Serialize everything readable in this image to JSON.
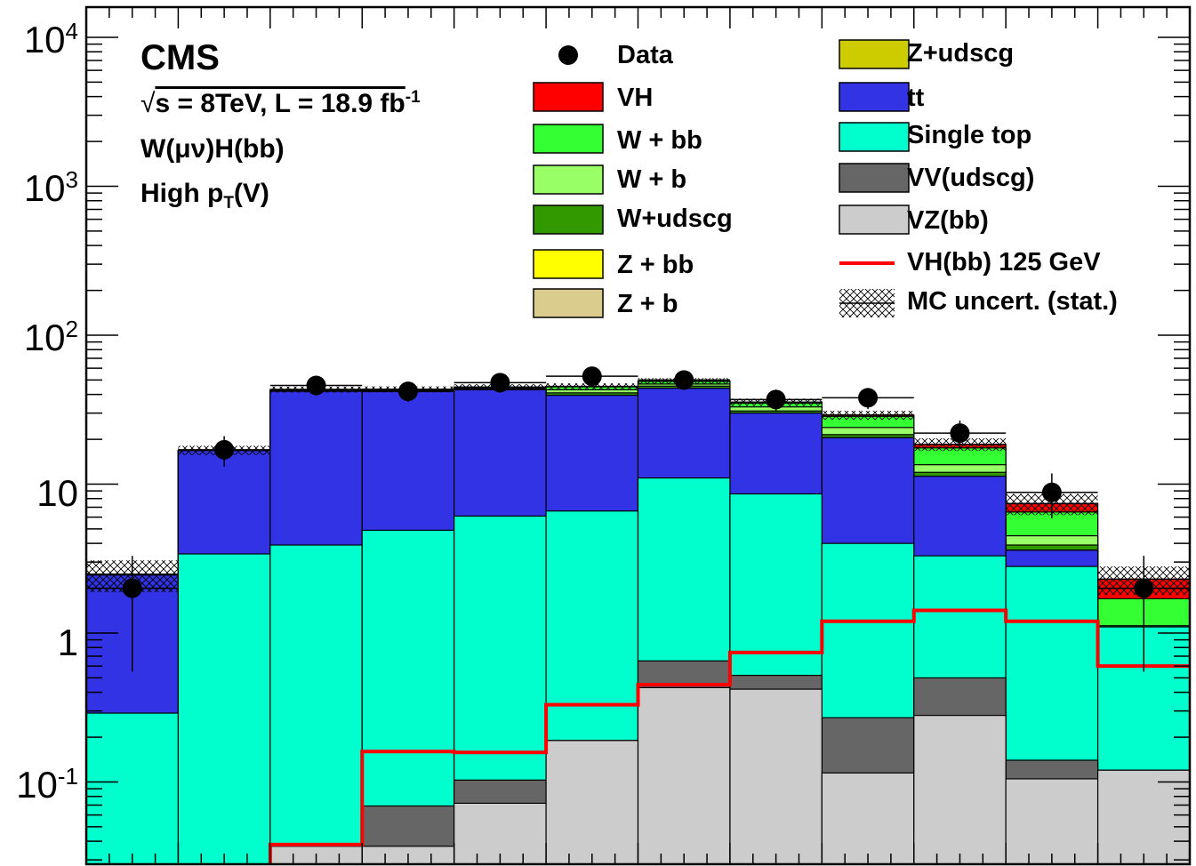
{
  "chart_data": {
    "type": "bar",
    "stacked": true,
    "yscale": "log",
    "ylim": [
      0.03,
      10000
    ],
    "n_bins": 12,
    "y_ticks": [
      {
        "value": 10000,
        "base": "10",
        "exp": "4"
      },
      {
        "value": 1000,
        "base": "10",
        "exp": "3"
      },
      {
        "value": 100,
        "base": "10",
        "exp": "2"
      },
      {
        "value": 10,
        "base": "10",
        "exp": ""
      },
      {
        "value": 1,
        "base": "1",
        "exp": ""
      },
      {
        "value": 0.1,
        "base": "10",
        "exp": "-1"
      }
    ],
    "stack_totals": {
      "VZ(bb)": [
        0.01,
        0.01,
        0.037,
        0.037,
        0.072,
        0.19,
        0.43,
        0.42,
        0.115,
        0.28,
        0.105,
        0.12
      ],
      "VV(udscg)": [
        0.01,
        0.01,
        0.037,
        0.069,
        0.103,
        0.19,
        0.65,
        0.52,
        0.27,
        0.5,
        0.14,
        0.12
      ],
      "Single top": [
        0.29,
        3.4,
        3.9,
        4.9,
        6.1,
        6.6,
        11,
        8.6,
        4.0,
        3.3,
        2.8,
        1.1
      ],
      "tt": [
        2.45,
        16.8,
        42,
        42,
        43,
        39.5,
        44,
        30,
        20.5,
        11.3,
        3.6,
        1.1
      ],
      "Z+udscg": [
        2.45,
        16.8,
        42,
        42,
        43,
        39.5,
        44,
        30,
        20.5,
        11.3,
        3.6,
        1.1
      ],
      "Z + b": [
        2.45,
        16.8,
        42,
        42,
        43,
        39.5,
        44,
        30,
        20.5,
        11.3,
        3.6,
        1.1
      ],
      "Z + bb": [
        2.45,
        16.8,
        42,
        42,
        43,
        39.5,
        44,
        30,
        20.5,
        11.3,
        3.6,
        1.1
      ],
      "W+udscg": [
        2.45,
        16.8,
        42,
        42,
        43.5,
        41,
        45.5,
        31,
        21.5,
        12,
        3.9,
        1.1
      ],
      "W + b": [
        2.45,
        16.8,
        42.5,
        42.5,
        44,
        43,
        47,
        33,
        24,
        13.5,
        4.5,
        1.12
      ],
      "W + bb": [
        2.45,
        16.8,
        43,
        43,
        44.5,
        45,
        49,
        35,
        28.5,
        17.5,
        6.5,
        1.7
      ],
      "VH": [
        2.48,
        16.9,
        43.2,
        43.3,
        44.8,
        45.3,
        49.3,
        35.5,
        29.1,
        18.5,
        7.4,
        2.3
      ]
    },
    "colors": {
      "VZ(bb)": "#cccccc",
      "VV(udscg)": "#666666",
      "Single top": "#00ffcc",
      "tt": "#3333e6",
      "Z+udscg": "#cccc00",
      "Z + b": "#d9cc8c",
      "Z + bb": "#ffff00",
      "W+udscg": "#339900",
      "W + b": "#99ff66",
      "W + bb": "#33ff33",
      "VH": "#ff0000",
      "signal_line": "#ff0000",
      "data": "#000000"
    },
    "signal_VH_bb_125": [
      0.01,
      0.01,
      0.038,
      0.16,
      0.158,
      0.33,
      0.45,
      0.74,
      1.2,
      1.42,
      1.2,
      0.6
    ],
    "data": {
      "values": [
        2.0,
        17,
        46,
        42,
        48,
        53,
        50,
        37,
        38,
        22,
        8.8,
        2.0
      ],
      "err_low": [
        1.45,
        3.9,
        6.7,
        6.3,
        6.9,
        7.2,
        7.0,
        6.0,
        6.1,
        4.6,
        2.9,
        1.45
      ],
      "err_high": [
        1.3,
        4.0,
        6.8,
        6.5,
        7.0,
        7.3,
        7.1,
        6.1,
        6.2,
        4.7,
        3.0,
        1.3
      ]
    },
    "mc_uncert": [
      0.6,
      1.2,
      2.0,
      2.0,
      2.0,
      2.2,
      2.2,
      2.0,
      2.0,
      1.8,
      1.2,
      0.5
    ],
    "legend": [
      {
        "label": "Data",
        "kind": "marker"
      },
      {
        "label": "VH",
        "kind": "box",
        "key": "VH"
      },
      {
        "label": "W + bb",
        "kind": "box",
        "key": "W + bb"
      },
      {
        "label": "W + b",
        "kind": "box",
        "key": "W + b"
      },
      {
        "label": "W+udscg",
        "kind": "box",
        "key": "W+udscg"
      },
      {
        "label": "Z + bb",
        "kind": "box",
        "key": "Z + bb"
      },
      {
        "label": "Z + b",
        "kind": "box",
        "key": "Z + b"
      },
      {
        "label": "Z+udscg",
        "kind": "box",
        "key": "Z+udscg"
      },
      {
        "label": "tt",
        "kind": "box",
        "key": "tt"
      },
      {
        "label": "Single top",
        "kind": "box",
        "key": "Single top"
      },
      {
        "label": "VV(udscg)",
        "kind": "box",
        "key": "VV(udscg)"
      },
      {
        "label": "VZ(bb)",
        "kind": "box",
        "key": "VZ(bb)"
      },
      {
        "label": "VH(bb) 125 GeV",
        "kind": "line"
      },
      {
        "label": "MC uncert. (stat.)",
        "kind": "hatch"
      }
    ],
    "annotations": {
      "experiment": "CMS",
      "energy_line_prefix": "s =  8TeV, L = 18.9 fb",
      "lumi_exp": "-1",
      "channel": "W(μν)H(bb)",
      "region_prefix": "High p",
      "region_sub": "T",
      "region_suffix": "(V)"
    }
  }
}
